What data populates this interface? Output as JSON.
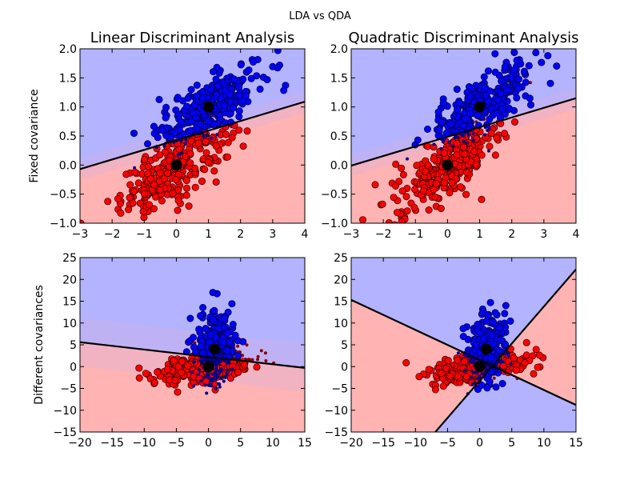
{
  "figure": {
    "title": "LDA vs QDA"
  },
  "colors": {
    "class0_region": "#ffb3b3",
    "class1_region": "#b3b3ff",
    "class0_point": "#ff0000",
    "class1_point": "#0000ff",
    "class0_misclassified": "#8b0000",
    "class1_misclassified": "#00008b",
    "means": "#000000",
    "boundary": "#000000"
  },
  "chart_data": [
    {
      "type": "scatter",
      "title": "Linear Discriminant Analysis",
      "ylabel": "Fixed covariance",
      "xlabel": "",
      "xlim": [
        -3,
        4
      ],
      "ylim": [
        -1.0,
        2.0
      ],
      "xticks": [
        "−3",
        "−2",
        "−1",
        "0",
        "1",
        "2",
        "3",
        "4"
      ],
      "yticks": [
        "−1.0",
        "−0.5",
        "0.0",
        "0.5",
        "1.0",
        "1.5",
        "2.0"
      ],
      "xtick_values": [
        -3,
        -2,
        -1,
        0,
        1,
        2,
        3,
        4
      ],
      "ytick_values": [
        -1.0,
        -0.5,
        0.0,
        0.5,
        1.0,
        1.5,
        2.0
      ],
      "decision_boundary": [
        [
          -3,
          -0.07
        ],
        [
          4,
          1.09
        ]
      ],
      "regions": {
        "above": "class 1",
        "below": "class 0"
      },
      "means": [
        {
          "class": 0,
          "x": 0,
          "y": 0
        },
        {
          "class": 1,
          "x": 1,
          "y": 1
        }
      ],
      "series": [
        {
          "class": 0,
          "distribution": {
            "mean": [
              0,
              0
            ],
            "sd": [
              0.85,
              0.42
            ],
            "corr": 0.75,
            "n": 300
          }
        },
        {
          "class": 1,
          "distribution": {
            "mean": [
              1,
              1
            ],
            "sd": [
              0.8,
              0.35
            ],
            "corr": 0.75,
            "n": 300
          }
        }
      ]
    },
    {
      "type": "scatter",
      "title": "Quadratic Discriminant Analysis",
      "ylabel": "",
      "xlabel": "",
      "xlim": [
        -3,
        4
      ],
      "ylim": [
        -1.0,
        2.0
      ],
      "xticks": [
        "−3",
        "−2",
        "−1",
        "0",
        "1",
        "2",
        "3",
        "4"
      ],
      "yticks": [
        "−1.0",
        "−0.5",
        "0.0",
        "0.5",
        "1.0",
        "1.5",
        "2.0"
      ],
      "xtick_values": [
        -3,
        -2,
        -1,
        0,
        1,
        2,
        3,
        4
      ],
      "ytick_values": [
        -1.0,
        -0.5,
        0.0,
        0.5,
        1.0,
        1.5,
        2.0
      ],
      "decision_boundary": [
        [
          -3,
          -0.01
        ],
        [
          4,
          1.15
        ]
      ],
      "regions": {
        "above": "class 1",
        "below": "class 0"
      },
      "means": [
        {
          "class": 0,
          "x": 0,
          "y": 0
        },
        {
          "class": 1,
          "x": 1,
          "y": 1
        }
      ],
      "series": [
        {
          "class": 0,
          "distribution": {
            "mean": [
              0,
              0
            ],
            "sd": [
              0.85,
              0.42
            ],
            "corr": 0.75,
            "n": 300
          }
        },
        {
          "class": 1,
          "distribution": {
            "mean": [
              1,
              1
            ],
            "sd": [
              0.8,
              0.35
            ],
            "corr": 0.75,
            "n": 300
          }
        }
      ]
    },
    {
      "type": "scatter",
      "title": "",
      "ylabel": "Different covariances",
      "xlabel": "",
      "xlim": [
        -20,
        15
      ],
      "ylim": [
        -15,
        25
      ],
      "xticks": [
        "−20",
        "−15",
        "−10",
        "−5",
        "0",
        "5",
        "10",
        "15"
      ],
      "yticks": [
        "−15",
        "−10",
        "−5",
        "0",
        "5",
        "10",
        "15",
        "20",
        "25"
      ],
      "xtick_values": [
        -20,
        -15,
        -10,
        -5,
        0,
        5,
        10,
        15
      ],
      "ytick_values": [
        -15,
        -10,
        -5,
        0,
        5,
        10,
        15,
        20,
        25
      ],
      "decision_boundary": [
        [
          -20,
          5.6
        ],
        [
          15,
          -0.3
        ]
      ],
      "regions": {
        "above": "class 1",
        "below": "class 0"
      },
      "means": [
        {
          "class": 0,
          "x": 0,
          "y": 0
        },
        {
          "class": 1,
          "x": 1,
          "y": 4
        }
      ],
      "series": [
        {
          "class": 0,
          "distribution": {
            "mean": [
              0,
              0
            ],
            "sd": [
              4.0,
              2.0
            ],
            "corr": 0.5,
            "n": 300
          }
        },
        {
          "class": 1,
          "distribution": {
            "mean": [
              1,
              4
            ],
            "sd": [
              1.5,
              4.0
            ],
            "corr": 0.1,
            "n": 300
          }
        }
      ]
    },
    {
      "type": "scatter",
      "title": "",
      "ylabel": "",
      "xlabel": "",
      "xlim": [
        -20,
        15
      ],
      "ylim": [
        -15,
        25
      ],
      "xticks": [
        "−20",
        "−15",
        "−10",
        "−5",
        "0",
        "5",
        "10",
        "15"
      ],
      "yticks": [
        "−15",
        "−10",
        "−5",
        "0",
        "5",
        "10",
        "15",
        "20",
        "25"
      ],
      "xtick_values": [
        -20,
        -15,
        -10,
        -5,
        0,
        5,
        10,
        15
      ],
      "ytick_values": [
        -15,
        -10,
        -5,
        0,
        5,
        10,
        15,
        20,
        25
      ],
      "decision_boundary_lines": [
        [
          [
            -20,
            15.3
          ],
          [
            15,
            -8.8
          ]
        ],
        [
          [
            -6.9,
            -15
          ],
          [
            15,
            22.3
          ]
        ]
      ],
      "regions": {
        "central": "class 1",
        "outer": "class 0"
      },
      "means": [
        {
          "class": 0,
          "x": 0,
          "y": 0
        },
        {
          "class": 1,
          "x": 1,
          "y": 4
        }
      ],
      "series": [
        {
          "class": 0,
          "distribution": {
            "mean": [
              0,
              0
            ],
            "sd": [
              4.0,
              2.0
            ],
            "corr": 0.5,
            "n": 300
          }
        },
        {
          "class": 1,
          "distribution": {
            "mean": [
              1,
              4
            ],
            "sd": [
              1.5,
              4.0
            ],
            "corr": 0.1,
            "n": 300
          }
        }
      ]
    }
  ]
}
